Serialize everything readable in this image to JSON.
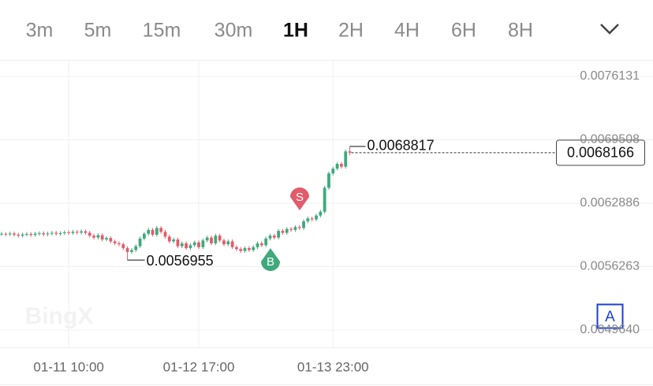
{
  "tabs": [
    "3m",
    "5m",
    "15m",
    "30m",
    "1H",
    "2H",
    "4H",
    "6H",
    "8H"
  ],
  "active_tab": "1H",
  "watermark": "BingX",
  "a_button": "A",
  "chart_data": {
    "type": "candlestick",
    "up_color": "#3fa97c",
    "down_color": "#e25c6b",
    "ylim": [
      0.0047831,
      0.0077776
    ],
    "yticks": [
      0.0076131,
      0.0069508,
      0.0062886,
      0.0056263,
      {
        "value": 0.004964,
        "label": "0.0049640"
      }
    ],
    "grid": true,
    "categories": [
      null,
      null,
      null,
      null,
      null,
      null,
      null,
      null,
      null,
      null,
      null,
      null,
      null,
      null,
      null,
      null,
      "01-11 10:00",
      null,
      null,
      null,
      null,
      null,
      null,
      null,
      null,
      null,
      null,
      null,
      null,
      null,
      null,
      null,
      null,
      null,
      null,
      null,
      null,
      null,
      null,
      null,
      null,
      null,
      null,
      null,
      null,
      null,
      null,
      "01-12 17:00",
      null,
      null,
      null,
      null,
      null,
      null,
      null,
      null,
      null,
      null,
      null,
      null,
      null,
      null,
      null,
      null,
      null,
      null,
      null,
      null,
      null,
      null,
      null,
      null,
      null,
      null,
      null,
      null,
      null,
      null,
      null,
      "01-13 23:00",
      null,
      null,
      null,
      null,
      null,
      null
    ],
    "ohlc": [
      [
        0.005968,
        0.00599,
        0.005948,
        0.00597
      ],
      [
        0.00597,
        0.005985,
        0.005945,
        0.005965
      ],
      [
        0.005965,
        0.005992,
        0.005945,
        0.005972
      ],
      [
        0.005972,
        0.005992,
        0.00594,
        0.00596
      ],
      [
        0.00596,
        0.00598,
        0.00593,
        0.00595
      ],
      [
        0.00595,
        0.005982,
        0.00593,
        0.005962
      ],
      [
        0.005962,
        0.005988,
        0.005942,
        0.005968
      ],
      [
        0.005968,
        0.005988,
        0.005938,
        0.005958
      ],
      [
        0.005958,
        0.00599,
        0.005938,
        0.00597
      ],
      [
        0.00597,
        0.005995,
        0.00595,
        0.005975
      ],
      [
        0.005975,
        0.005995,
        0.005944,
        0.005964
      ],
      [
        0.005964,
        0.005992,
        0.005944,
        0.005972
      ],
      [
        0.005972,
        0.006,
        0.005952,
        0.00598
      ],
      [
        0.00598,
        0.006,
        0.00595,
        0.00597
      ],
      [
        0.00597,
        0.005996,
        0.00595,
        0.005976
      ],
      [
        0.005976,
        0.006005,
        0.005956,
        0.005985
      ],
      [
        0.005985,
        0.006005,
        0.005958,
        0.005978
      ],
      [
        0.005978,
        0.00601,
        0.005958,
        0.00599
      ],
      [
        0.00599,
        0.00601,
        0.005962,
        0.005982
      ],
      [
        0.005982,
        0.006015,
        0.005962,
        0.005995
      ],
      [
        0.005995,
        0.006015,
        0.00596,
        0.00598
      ],
      [
        0.00598,
        0.006,
        0.00593,
        0.00595
      ],
      [
        0.00595,
        0.00597,
        0.00591,
        0.00593
      ],
      [
        0.00593,
        0.005975,
        0.00591,
        0.005955
      ],
      [
        0.005955,
        0.005975,
        0.00589,
        0.00591
      ],
      [
        0.00591,
        0.005945,
        0.00589,
        0.005925
      ],
      [
        0.005925,
        0.005945,
        0.00587,
        0.00589
      ],
      [
        0.00589,
        0.00591,
        0.00585,
        0.00587
      ],
      [
        0.00587,
        0.00589,
        0.00584,
        0.00586
      ],
      [
        0.00586,
        0.00588,
        0.0058,
        0.00582
      ],
      [
        0.00582,
        0.00584,
        0.0056955,
        0.00578
      ],
      [
        0.00578,
        0.00582,
        0.00576,
        0.0058
      ],
      [
        0.0058,
        0.00586,
        0.00578,
        0.00584
      ],
      [
        0.00584,
        0.00594,
        0.00582,
        0.00592
      ],
      [
        0.00592,
        0.00599,
        0.0059,
        0.00597
      ],
      [
        0.00597,
        0.00603,
        0.00595,
        0.00601
      ],
      [
        0.00601,
        0.00603,
        0.00594,
        0.00596
      ],
      [
        0.00596,
        0.00605,
        0.00594,
        0.00603
      ],
      [
        0.00603,
        0.00605,
        0.00597,
        0.00599
      ],
      [
        0.00599,
        0.00601,
        0.00592,
        0.00594
      ],
      [
        0.00594,
        0.00596,
        0.00587,
        0.00589
      ],
      [
        0.00589,
        0.00593,
        0.00587,
        0.00591
      ],
      [
        0.00591,
        0.00593,
        0.00582,
        0.00584
      ],
      [
        0.00584,
        0.00589,
        0.00582,
        0.00587
      ],
      [
        0.00587,
        0.00589,
        0.0058,
        0.00582
      ],
      [
        0.00582,
        0.00587,
        0.0058,
        0.00585
      ],
      [
        0.00585,
        0.0059,
        0.00583,
        0.00588
      ],
      [
        0.00588,
        0.0059,
        0.00581,
        0.00583
      ],
      [
        0.00583,
        0.00592,
        0.00581,
        0.0059
      ],
      [
        0.0059,
        0.00595,
        0.00588,
        0.00593
      ],
      [
        0.00593,
        0.00595,
        0.00585,
        0.00587
      ],
      [
        0.00587,
        0.00597,
        0.00585,
        0.00595
      ],
      [
        0.00595,
        0.00597,
        0.00588,
        0.0059
      ],
      [
        0.0059,
        0.00592,
        0.00584,
        0.00586
      ],
      [
        0.00586,
        0.00591,
        0.00584,
        0.00589
      ],
      [
        0.00589,
        0.00591,
        0.00581,
        0.00583
      ],
      [
        0.00583,
        0.00585,
        0.00579,
        0.00581
      ],
      [
        0.00581,
        0.00583,
        0.00577,
        0.00579
      ],
      [
        0.00579,
        0.00584,
        0.00577,
        0.00582
      ],
      [
        0.00582,
        0.00584,
        0.00578,
        0.0058
      ],
      [
        0.0058,
        0.00585,
        0.00578,
        0.00583
      ],
      [
        0.00583,
        0.00589,
        0.00581,
        0.00587
      ],
      [
        0.00587,
        0.00589,
        0.00583,
        0.00585
      ],
      [
        0.00585,
        0.00594,
        0.00583,
        0.00592
      ],
      [
        0.00592,
        0.00597,
        0.0059,
        0.00595
      ],
      [
        0.00595,
        0.00597,
        0.00591,
        0.00593
      ],
      [
        0.00593,
        0.00602,
        0.00591,
        0.006
      ],
      [
        0.006,
        0.00602,
        0.00596,
        0.00598
      ],
      [
        0.00598,
        0.00604,
        0.00596,
        0.00602
      ],
      [
        0.00602,
        0.00604,
        0.00599,
        0.00601
      ],
      [
        0.00601,
        0.00606,
        0.00599,
        0.00604
      ],
      [
        0.00604,
        0.00606,
        0.00601,
        0.00603
      ],
      [
        0.00603,
        0.00612,
        0.00601,
        0.0061
      ],
      [
        0.0061,
        0.00615,
        0.00608,
        0.00613
      ],
      [
        0.00613,
        0.00615,
        0.0061,
        0.00612
      ],
      [
        0.00612,
        0.00618,
        0.0061,
        0.00616
      ],
      [
        0.00616,
        0.00622,
        0.00614,
        0.0062
      ],
      [
        0.0062,
        0.00647,
        0.00618,
        0.00645
      ],
      [
        0.00645,
        0.00662,
        0.00643,
        0.0066
      ],
      [
        0.0066,
        0.00667,
        0.00658,
        0.00665
      ],
      [
        0.00665,
        0.00672,
        0.00663,
        0.0067
      ],
      [
        0.0067,
        0.00672,
        0.00665,
        0.00667
      ],
      [
        0.00667,
        0.00685,
        0.00665,
        0.00683
      ],
      [
        0.00683,
        0.0068817,
        0.00679,
        0.0068166
      ]
    ],
    "annotations": {
      "high": 0.0068817,
      "low": 0.0056955,
      "last_price": 0.0068166
    },
    "trade_markers": [
      "S",
      "B"
    ]
  }
}
